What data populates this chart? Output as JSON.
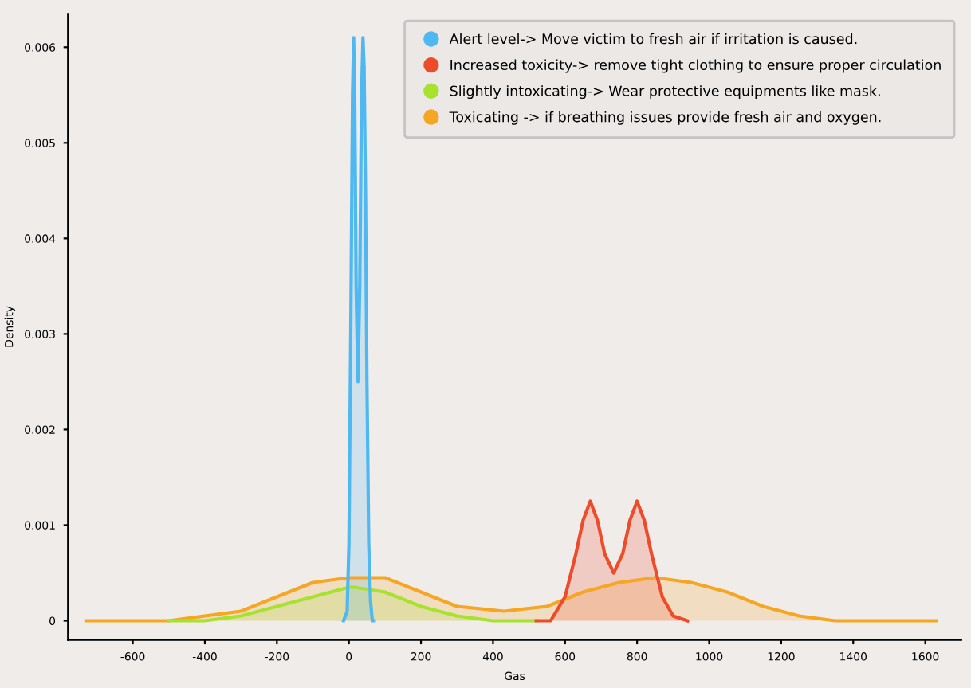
{
  "chart_data": {
    "type": "area",
    "xlabel": "Gas",
    "ylabel": "Density",
    "xlim": [
      -780,
      1700
    ],
    "ylim": [
      -0.0002,
      0.00635
    ],
    "xticks": [
      -600,
      -400,
      -200,
      0,
      200,
      400,
      600,
      800,
      1000,
      1200,
      1400,
      1600
    ],
    "yticks": [
      0,
      0.001,
      0.002,
      0.003,
      0.004,
      0.005,
      0.006
    ],
    "grid": false,
    "legend": "top right",
    "series": [
      {
        "name": "Toxicating -> if breathing issues provide fresh air and oxygen.",
        "color": "#f5a623",
        "x": [
          -730,
          -600,
          -500,
          -400,
          -300,
          -200,
          -100,
          0,
          100,
          200,
          300,
          430,
          550,
          650,
          750,
          850,
          950,
          1050,
          1150,
          1250,
          1350,
          1450,
          1630
        ],
        "values": [
          0,
          0,
          0,
          5e-05,
          0.0001,
          0.00025,
          0.0004,
          0.00045,
          0.00045,
          0.0003,
          0.00015,
          0.0001,
          0.00015,
          0.0003,
          0.0004,
          0.00045,
          0.0004,
          0.0003,
          0.00015,
          5e-05,
          0,
          0,
          0
        ]
      },
      {
        "name": "Slightly intoxicating-> Wear protective equipments like mask.",
        "color": "#a6e22e",
        "x": [
          -500,
          -400,
          -300,
          -200,
          -100,
          0,
          15,
          100,
          200,
          300,
          400,
          520
        ],
        "values": [
          0,
          0,
          5e-05,
          0.00015,
          0.00025,
          0.00035,
          0.00035,
          0.0003,
          0.00015,
          5e-05,
          0,
          0
        ]
      },
      {
        "name": "Alert level-> Move victim to fresh air if irritation is caused.",
        "color": "#4fb8f0",
        "x": [
          -15,
          -5,
          0,
          5,
          10,
          13,
          16,
          20,
          25,
          30,
          35,
          39,
          42,
          46,
          50,
          55,
          60,
          65,
          70
        ],
        "values": [
          0,
          0.0001,
          0.0008,
          0.003,
          0.0055,
          0.0061,
          0.0055,
          0.0035,
          0.0025,
          0.0035,
          0.0055,
          0.0061,
          0.0058,
          0.0045,
          0.0025,
          0.0008,
          0.0002,
          0,
          0
        ]
      },
      {
        "name": "Increased toxicity-> remove tight clothing to ensure proper circulation",
        "color": "#ee4b2b",
        "x": [
          520,
          560,
          600,
          630,
          650,
          670,
          690,
          710,
          735,
          760,
          780,
          800,
          820,
          840,
          870,
          900,
          940
        ],
        "values": [
          0,
          0,
          0.00025,
          0.0007,
          0.00105,
          0.00125,
          0.00105,
          0.0007,
          0.0005,
          0.0007,
          0.00105,
          0.00125,
          0.00105,
          0.0007,
          0.00025,
          5e-05,
          0
        ]
      }
    ]
  }
}
